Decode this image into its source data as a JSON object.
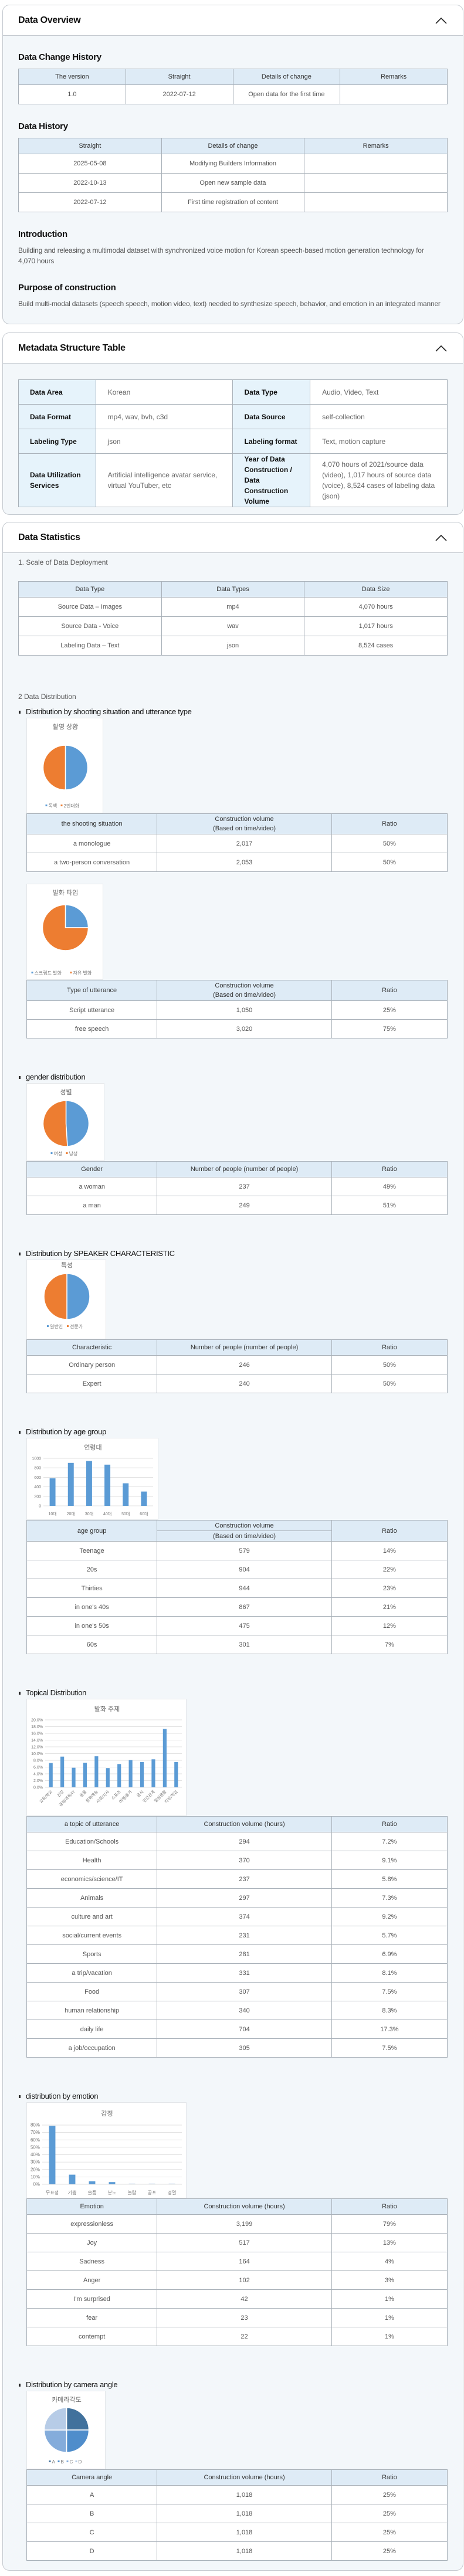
{
  "overview": {
    "title": "Data Overview",
    "change_history": {
      "title": "Data Change History",
      "headers": [
        "The version",
        "Straight",
        "Details of change",
        "Remarks"
      ],
      "rows": [
        [
          "1.0",
          "2022-07-12",
          "Open data for the first time",
          ""
        ]
      ]
    },
    "data_history": {
      "title": "Data History",
      "headers": [
        "Straight",
        "Details of change",
        "Remarks"
      ],
      "rows": [
        [
          "2025-05-08",
          "Modifying Builders Information",
          ""
        ],
        [
          "2022-10-13",
          "Open new sample data",
          ""
        ],
        [
          "2022-07-12",
          "First time registration of content",
          ""
        ]
      ]
    },
    "introduction": {
      "title": "Introduction",
      "text": "Building and releasing a multimodal dataset with synchronized voice motion for Korean speech-based motion generation technology for 4,070 hours"
    },
    "purpose": {
      "title": "Purpose of construction",
      "text": "Build multi-modal datasets (speech speech, motion video, text) needed to synthesize speech, behavior, and emotion in an integrated manner"
    }
  },
  "metadata": {
    "title": "Metadata Structure Table",
    "rows": [
      [
        {
          "label": "Data Area",
          "value": "Korean"
        },
        {
          "label": "Data Type",
          "value": "Audio, Video, Text"
        }
      ],
      [
        {
          "label": "Data Format",
          "value": "mp4, wav, bvh, c3d"
        },
        {
          "label": "Data Source",
          "value": "self-collection"
        }
      ],
      [
        {
          "label": "Labeling Type",
          "value": "json"
        },
        {
          "label": "Labeling format",
          "value": "Text, motion capture"
        }
      ],
      [
        {
          "label": "Data Utilization Services",
          "value": "Artificial intelligence avatar service, virtual YouTuber, etc"
        },
        {
          "label": "Year of Data Construction / Data Construction Volume",
          "value": "4,070 hours of 2021/source data (video), 1,017 hours of source data (voice), 8,524 cases of labeling data (json)"
        }
      ]
    ]
  },
  "statistics": {
    "title": "Data Statistics",
    "scale_title": "1. Scale of Data Deployment",
    "scale_table": {
      "headers": [
        "Data Type",
        "Data Types",
        "Data Size"
      ],
      "rows": [
        [
          "Source Data – Images",
          "mp4",
          "4,070 hours"
        ],
        [
          "Source Data - Voice",
          "wav",
          "1,017 hours"
        ],
        [
          "Labeling Data – Text",
          "json",
          "8,524 cases"
        ]
      ]
    },
    "distribution_title": "2 Data Distribution",
    "sections": [
      {
        "heading": "Distribution by shooting situation and utterance type",
        "tables": [
          {
            "headers": [
              "the shooting situation",
              "Construction volume\n(Based on time/video)",
              "Ratio"
            ],
            "rows": [
              [
                "a monologue",
                "2,017",
                "50%"
              ],
              [
                "a two-person conversation",
                "2,053",
                "50%"
              ]
            ]
          },
          {
            "headers": [
              "Type of utterance",
              "Construction volume\n(Based on time/video)",
              "Ratio"
            ],
            "rows": [
              [
                "Script utterance",
                "1,050",
                "25%"
              ],
              [
                "free speech",
                "3,020",
                "75%"
              ]
            ]
          }
        ]
      },
      {
        "heading": "gender distribution",
        "tables": [
          {
            "headers": [
              "Gender",
              "Number of people (number of people)",
              "Ratio"
            ],
            "rows": [
              [
                "a woman",
                "237",
                "49%"
              ],
              [
                "a man",
                "249",
                "51%"
              ]
            ]
          }
        ]
      },
      {
        "heading": "Distribution by SPEAKER CHARACTERISTIC",
        "tables": [
          {
            "headers": [
              "Characteristic",
              "Number of people (number of people)",
              "Ratio"
            ],
            "rows": [
              [
                "Ordinary person",
                "246",
                "50%"
              ],
              [
                "Expert",
                "240",
                "50%"
              ]
            ]
          }
        ]
      },
      {
        "heading": "Distribution by age group",
        "tables": [
          {
            "headers": [
              "age group",
              [
                "Construction volume",
                "(Based on time/video)"
              ],
              "Ratio"
            ],
            "rows": [
              [
                "Teenage",
                "579",
                "14%"
              ],
              [
                "20s",
                "904",
                "22%"
              ],
              [
                "Thirties",
                "944",
                "23%"
              ],
              [
                "in one's 40s",
                "867",
                "21%"
              ],
              [
                "in one's 50s",
                "475",
                "12%"
              ],
              [
                "60s",
                "301",
                "7%"
              ]
            ]
          }
        ]
      },
      {
        "heading": "Topical Distribution",
        "tables": [
          {
            "headers": [
              "a topic of utterance",
              "Construction volume (hours)",
              "Ratio"
            ],
            "rows": [
              [
                "Education/Schools",
                "294",
                "7.2%"
              ],
              [
                "Health",
                "370",
                "9.1%"
              ],
              [
                "economics/science/IT",
                "237",
                "5.8%"
              ],
              [
                "Animals",
                "297",
                "7.3%"
              ],
              [
                "culture and art",
                "374",
                "9.2%"
              ],
              [
                "social/current events",
                "231",
                "5.7%"
              ],
              [
                "Sports",
                "281",
                "6.9%"
              ],
              [
                "a trip/vacation",
                "331",
                "8.1%"
              ],
              [
                "Food",
                "307",
                "7.5%"
              ],
              [
                "human relationship",
                "340",
                "8.3%"
              ],
              [
                "daily life",
                "704",
                "17.3%"
              ],
              [
                "a job/occupation",
                "305",
                "7.5%"
              ]
            ]
          }
        ]
      },
      {
        "heading": "distribution by emotion",
        "tables": [
          {
            "headers": [
              "Emotion",
              "Construction volume (hours)",
              "Ratio"
            ],
            "rows": [
              [
                "expressionless",
                "3,199",
                "79%"
              ],
              [
                "Joy",
                "517",
                "13%"
              ],
              [
                "Sadness",
                "164",
                "4%"
              ],
              [
                "Anger",
                "102",
                "3%"
              ],
              [
                "I'm surprised",
                "42",
                "1%"
              ],
              [
                "fear",
                "23",
                "1%"
              ],
              [
                "contempt",
                "22",
                "1%"
              ]
            ]
          }
        ]
      },
      {
        "heading": "Distribution by camera angle",
        "tables": [
          {
            "headers": [
              "Camera angle",
              "Construction volume (hours)",
              "Ratio"
            ],
            "rows": [
              [
                "A",
                "1,018",
                "25%"
              ],
              [
                "B",
                "1,018",
                "25%"
              ],
              [
                "C",
                "1,018",
                "25%"
              ],
              [
                "D",
                "1,018",
                "25%"
              ]
            ]
          }
        ]
      }
    ]
  },
  "chart_data": [
    {
      "type": "pie",
      "title": "촬영 상황",
      "labels": [
        "독백",
        "2인대화"
      ],
      "values": [
        50,
        50
      ],
      "colors": [
        "#5b9bd5",
        "#ed7d31"
      ],
      "legend": "bottom"
    },
    {
      "type": "pie",
      "title": "발화 타입",
      "labels": [
        "스크립트 발화",
        "자유 발화"
      ],
      "values": [
        25,
        75
      ],
      "colors": [
        "#5b9bd5",
        "#ed7d31"
      ],
      "legend": "bottom"
    },
    {
      "type": "pie",
      "title": "성별",
      "labels": [
        "여성",
        "남성"
      ],
      "values": [
        49,
        51
      ],
      "colors": [
        "#5b9bd5",
        "#ed7d31"
      ],
      "legend": "bottom"
    },
    {
      "type": "pie",
      "title": "특성",
      "labels": [
        "일반인",
        "전문가"
      ],
      "values": [
        50,
        50
      ],
      "colors": [
        "#5b9bd5",
        "#ed7d31"
      ],
      "legend": "bottom"
    },
    {
      "type": "bar",
      "title": "연령대",
      "categories": [
        "10대",
        "20대",
        "30대",
        "40대",
        "50대",
        "60대"
      ],
      "values": [
        579,
        904,
        944,
        867,
        475,
        301
      ],
      "ylim": [
        0,
        1000
      ],
      "yticks": [
        0,
        200,
        400,
        600,
        800,
        1000
      ],
      "ytick_labels": [
        "0",
        "200",
        "400",
        "600",
        "800",
        "1000"
      ],
      "grid": true,
      "color": "#5b9bd5"
    },
    {
      "type": "bar",
      "title": "발화 주제",
      "categories": [
        "교육/학교",
        "건강",
        "경제/과학/IT",
        "동물",
        "문화예술",
        "사회/시사",
        "스포츠",
        "여행/휴가",
        "음식",
        "인간관계",
        "일상생활",
        "직장/직업"
      ],
      "values": [
        7.2,
        9.1,
        5.8,
        7.3,
        9.2,
        5.7,
        6.9,
        8.1,
        7.5,
        8.3,
        17.3,
        7.5
      ],
      "ylim": [
        0,
        20
      ],
      "yticks": [
        0,
        2,
        4,
        6,
        8,
        10,
        12,
        14,
        16,
        18,
        20
      ],
      "ytick_labels": [
        "0.0%",
        "2.0%",
        "4.0%",
        "6.0%",
        "8.0%",
        "10.0%",
        "12.0%",
        "14.0%",
        "16.0%",
        "18.0%",
        "20.0%"
      ],
      "grid": true,
      "color": "#5b9bd5"
    },
    {
      "type": "bar",
      "title": "감정",
      "categories": [
        "무표정",
        "기쁨",
        "슬픔",
        "분노",
        "놀람",
        "공포",
        "경멸"
      ],
      "values": [
        79,
        13,
        4,
        3,
        1,
        1,
        1
      ],
      "ylim": [
        0,
        80
      ],
      "yticks": [
        0,
        10,
        20,
        30,
        40,
        50,
        60,
        70,
        80
      ],
      "ytick_labels": [
        "0%",
        "10%",
        "20%",
        "30%",
        "40%",
        "50%",
        "60%",
        "70%",
        "80%"
      ],
      "grid": true,
      "color": "#5b9bd5"
    },
    {
      "type": "pie",
      "title": "카메라각도",
      "labels": [
        "A",
        "B",
        "C",
        "D"
      ],
      "values": [
        25,
        25,
        25,
        25
      ],
      "colors": [
        "#41719c",
        "#4f8dcb",
        "#84acdb",
        "#b7cce7"
      ],
      "legend": "bottom"
    }
  ]
}
